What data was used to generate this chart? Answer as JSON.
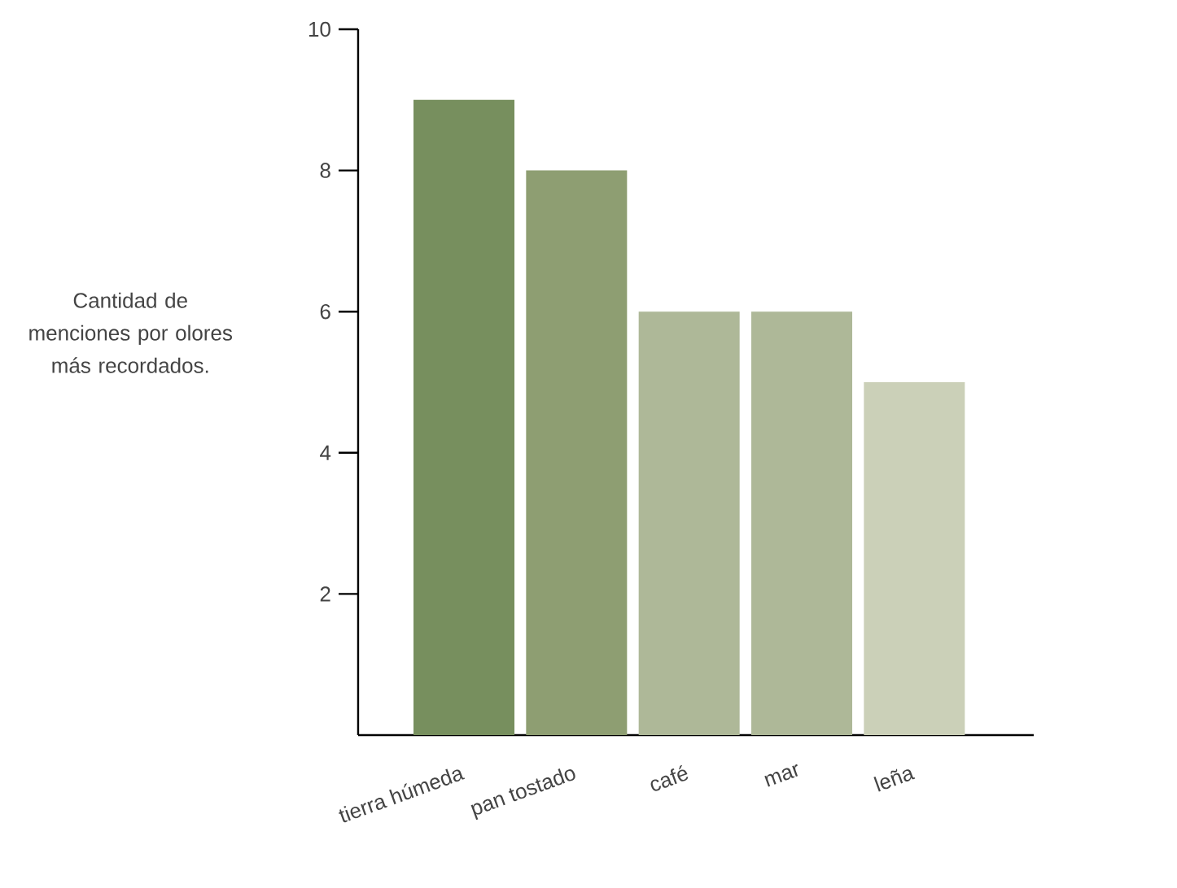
{
  "chart_data": {
    "type": "bar",
    "ylabel": "Cantidad de menciones por olores más recordados.",
    "categories": [
      "tierra húmeda",
      "pan tostado",
      "café",
      "mar",
      "leña"
    ],
    "values": [
      9,
      8,
      6,
      6,
      5
    ],
    "colors": [
      "#778f5e",
      "#8e9e72",
      "#aeb898",
      "#aeb898",
      "#cbd0b8"
    ],
    "ylim": [
      0,
      10
    ],
    "yticks": [
      2,
      4,
      6,
      8,
      10
    ]
  }
}
